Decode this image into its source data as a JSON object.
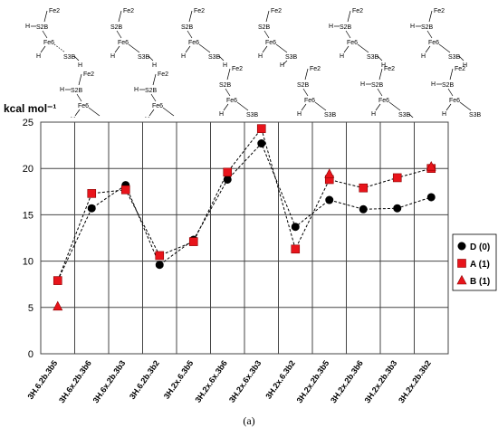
{
  "chart_data": {
    "type": "line",
    "ylabel": "kcal mol⁻¹",
    "ylim": [
      0,
      25
    ],
    "yticks": [
      "0",
      "5",
      "10",
      "15",
      "20",
      "25"
    ],
    "grid": true,
    "legend_position": "right",
    "categories": [
      "3H.6.2b.3b5",
      "3H.6x.2b.3b6",
      "3H.6x.2b.3b3",
      "3H.6.2b.3b2",
      "3H.2x.6.3b5",
      "3H.2x.6x.3b6",
      "3H.2x.6x.3b3",
      "3H.2x.6.3b2",
      "3H.2x.2b.3b5",
      "3H.2x.2b.3b6",
      "3H.2x.2b.3b3",
      "3H.2x.2b.3b2"
    ],
    "series": [
      {
        "name": "D (0)",
        "marker": "circle",
        "color": "#000000",
        "values": [
          7.9,
          15.7,
          18.2,
          9.6,
          12.3,
          18.8,
          22.7,
          13.7,
          16.6,
          15.6,
          15.7,
          16.9
        ]
      },
      {
        "name": "A (1)",
        "marker": "square",
        "color": "#e8141b",
        "values": [
          7.9,
          17.3,
          17.7,
          10.6,
          12.1,
          19.6,
          24.3,
          11.3,
          18.8,
          17.9,
          19.0,
          20.0
        ]
      },
      {
        "name": "B (1)",
        "marker": "triangle",
        "color": "#e8141b",
        "values": [
          5.1,
          null,
          null,
          null,
          null,
          null,
          null,
          null,
          19.4,
          null,
          null,
          20.2
        ]
      }
    ]
  },
  "structure_labels": [
    "Fe2",
    "H",
    "S2B",
    "Fe6",
    "S3B"
  ],
  "caption": "(a)"
}
